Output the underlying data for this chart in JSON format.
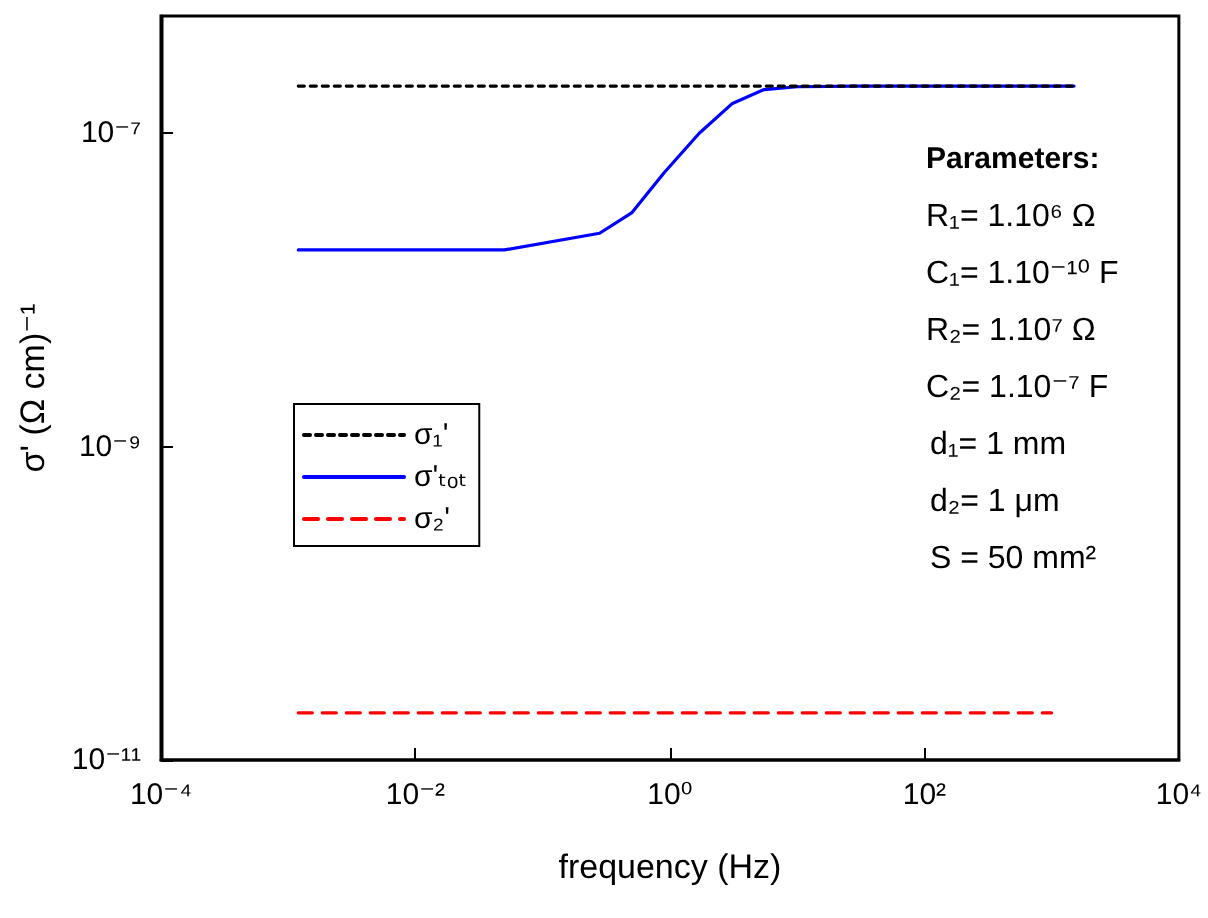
{
  "chart_data": {
    "type": "line",
    "xlabel": "frequency (Hz)",
    "ylabel": "σ' (Ω cm)⁻¹",
    "log": "xy",
    "xlim": [
      0.0001,
      10000
    ],
    "ylim": [
      1e-11,
      5.6e-07
    ],
    "xticks": [
      {
        "value": 0.0001,
        "label": "10⁻⁴"
      },
      {
        "value": 0.01,
        "label": "10⁻²"
      },
      {
        "value": 1,
        "label": "10⁰"
      },
      {
        "value": 100,
        "label": "10²"
      },
      {
        "value": 10000,
        "label": "10⁴"
      }
    ],
    "yticks": [
      {
        "value": 1e-11,
        "label": "10⁻¹¹"
      },
      {
        "value": 1e-09,
        "label": "10⁻⁹"
      },
      {
        "value": 1e-07,
        "label": "10⁻⁷"
      }
    ],
    "grid": false,
    "legend": "left",
    "marker": "none",
    "series": [
      {
        "name": "σ₁'",
        "color": "#000000",
        "line_style": "dotted",
        "x": [
          0.0012,
          1500
        ],
        "values": [
          2e-07,
          2e-07
        ]
      },
      {
        "name": "σ'ₜₒₜ",
        "color": "#0000ff",
        "line_style": "solid",
        "x": [
          0.0012,
          0.05,
          0.28,
          0.5,
          0.9,
          1.7,
          3.1,
          5.5,
          10,
          30,
          1500
        ],
        "values": [
          1.8e-08,
          1.8e-08,
          2.3e-08,
          3.1e-08,
          5.6e-08,
          1e-07,
          1.55e-07,
          1.9e-07,
          1.98e-07,
          2e-07,
          2e-07
        ]
      },
      {
        "name": "σ₂'",
        "color": "#ff0000",
        "line_style": "dashed",
        "x": [
          0.0012,
          1000
        ],
        "values": [
          2e-11,
          2e-11
        ]
      }
    ],
    "annotations": [
      "Parameters:",
      "R₁= 1.10⁶ Ω",
      "C₁= 1.10⁻¹⁰ F",
      "R₂= 1.10⁷ Ω",
      "C₂= 1.10⁻⁷ F",
      "d₁= 1 mm",
      "d₂= 1 μm",
      "S = 50 mm²"
    ]
  }
}
